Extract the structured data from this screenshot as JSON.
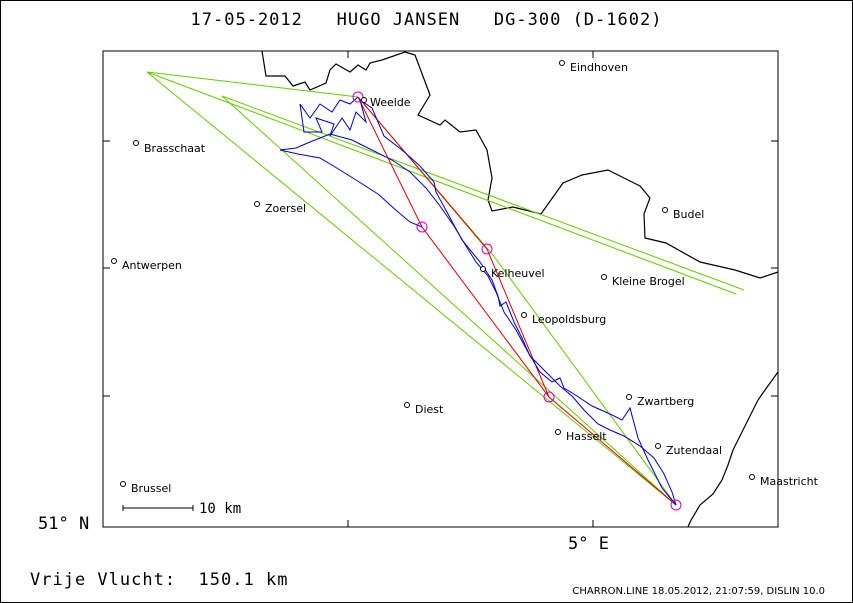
{
  "header": {
    "date": "17-05-2012",
    "pilot": "HUGO JANSEN",
    "glider": "DG-300 (D-1602)"
  },
  "axes": {
    "lat_label": "51° N",
    "lon_label": "5° E"
  },
  "scale_bar": {
    "label": "10 km"
  },
  "summary": {
    "label": "Vrije Vlucht:",
    "distance": "150.1 km"
  },
  "footer": "CHARRON.LINE 18.05.2012, 21:07:59, DISLIN 10.0",
  "colors": {
    "track": "#0000cc",
    "border": "#000000",
    "task_red": "#dd0000",
    "task_green": "#66cc00",
    "turnpoint": "#cc00cc"
  },
  "cities": [
    {
      "name": "Eindhoven"
    },
    {
      "name": "Weelde"
    },
    {
      "name": "Brasschaat"
    },
    {
      "name": "Zoersel"
    },
    {
      "name": "Budel"
    },
    {
      "name": "Antwerpen"
    },
    {
      "name": "Kelheuvel"
    },
    {
      "name": "Kleine Brogel"
    },
    {
      "name": "Leopoldsburg"
    },
    {
      "name": "Zwartberg"
    },
    {
      "name": "Diest"
    },
    {
      "name": "Hasselt"
    },
    {
      "name": "Zutendaal"
    },
    {
      "name": "Maastricht"
    },
    {
      "name": "Brussel"
    }
  ]
}
